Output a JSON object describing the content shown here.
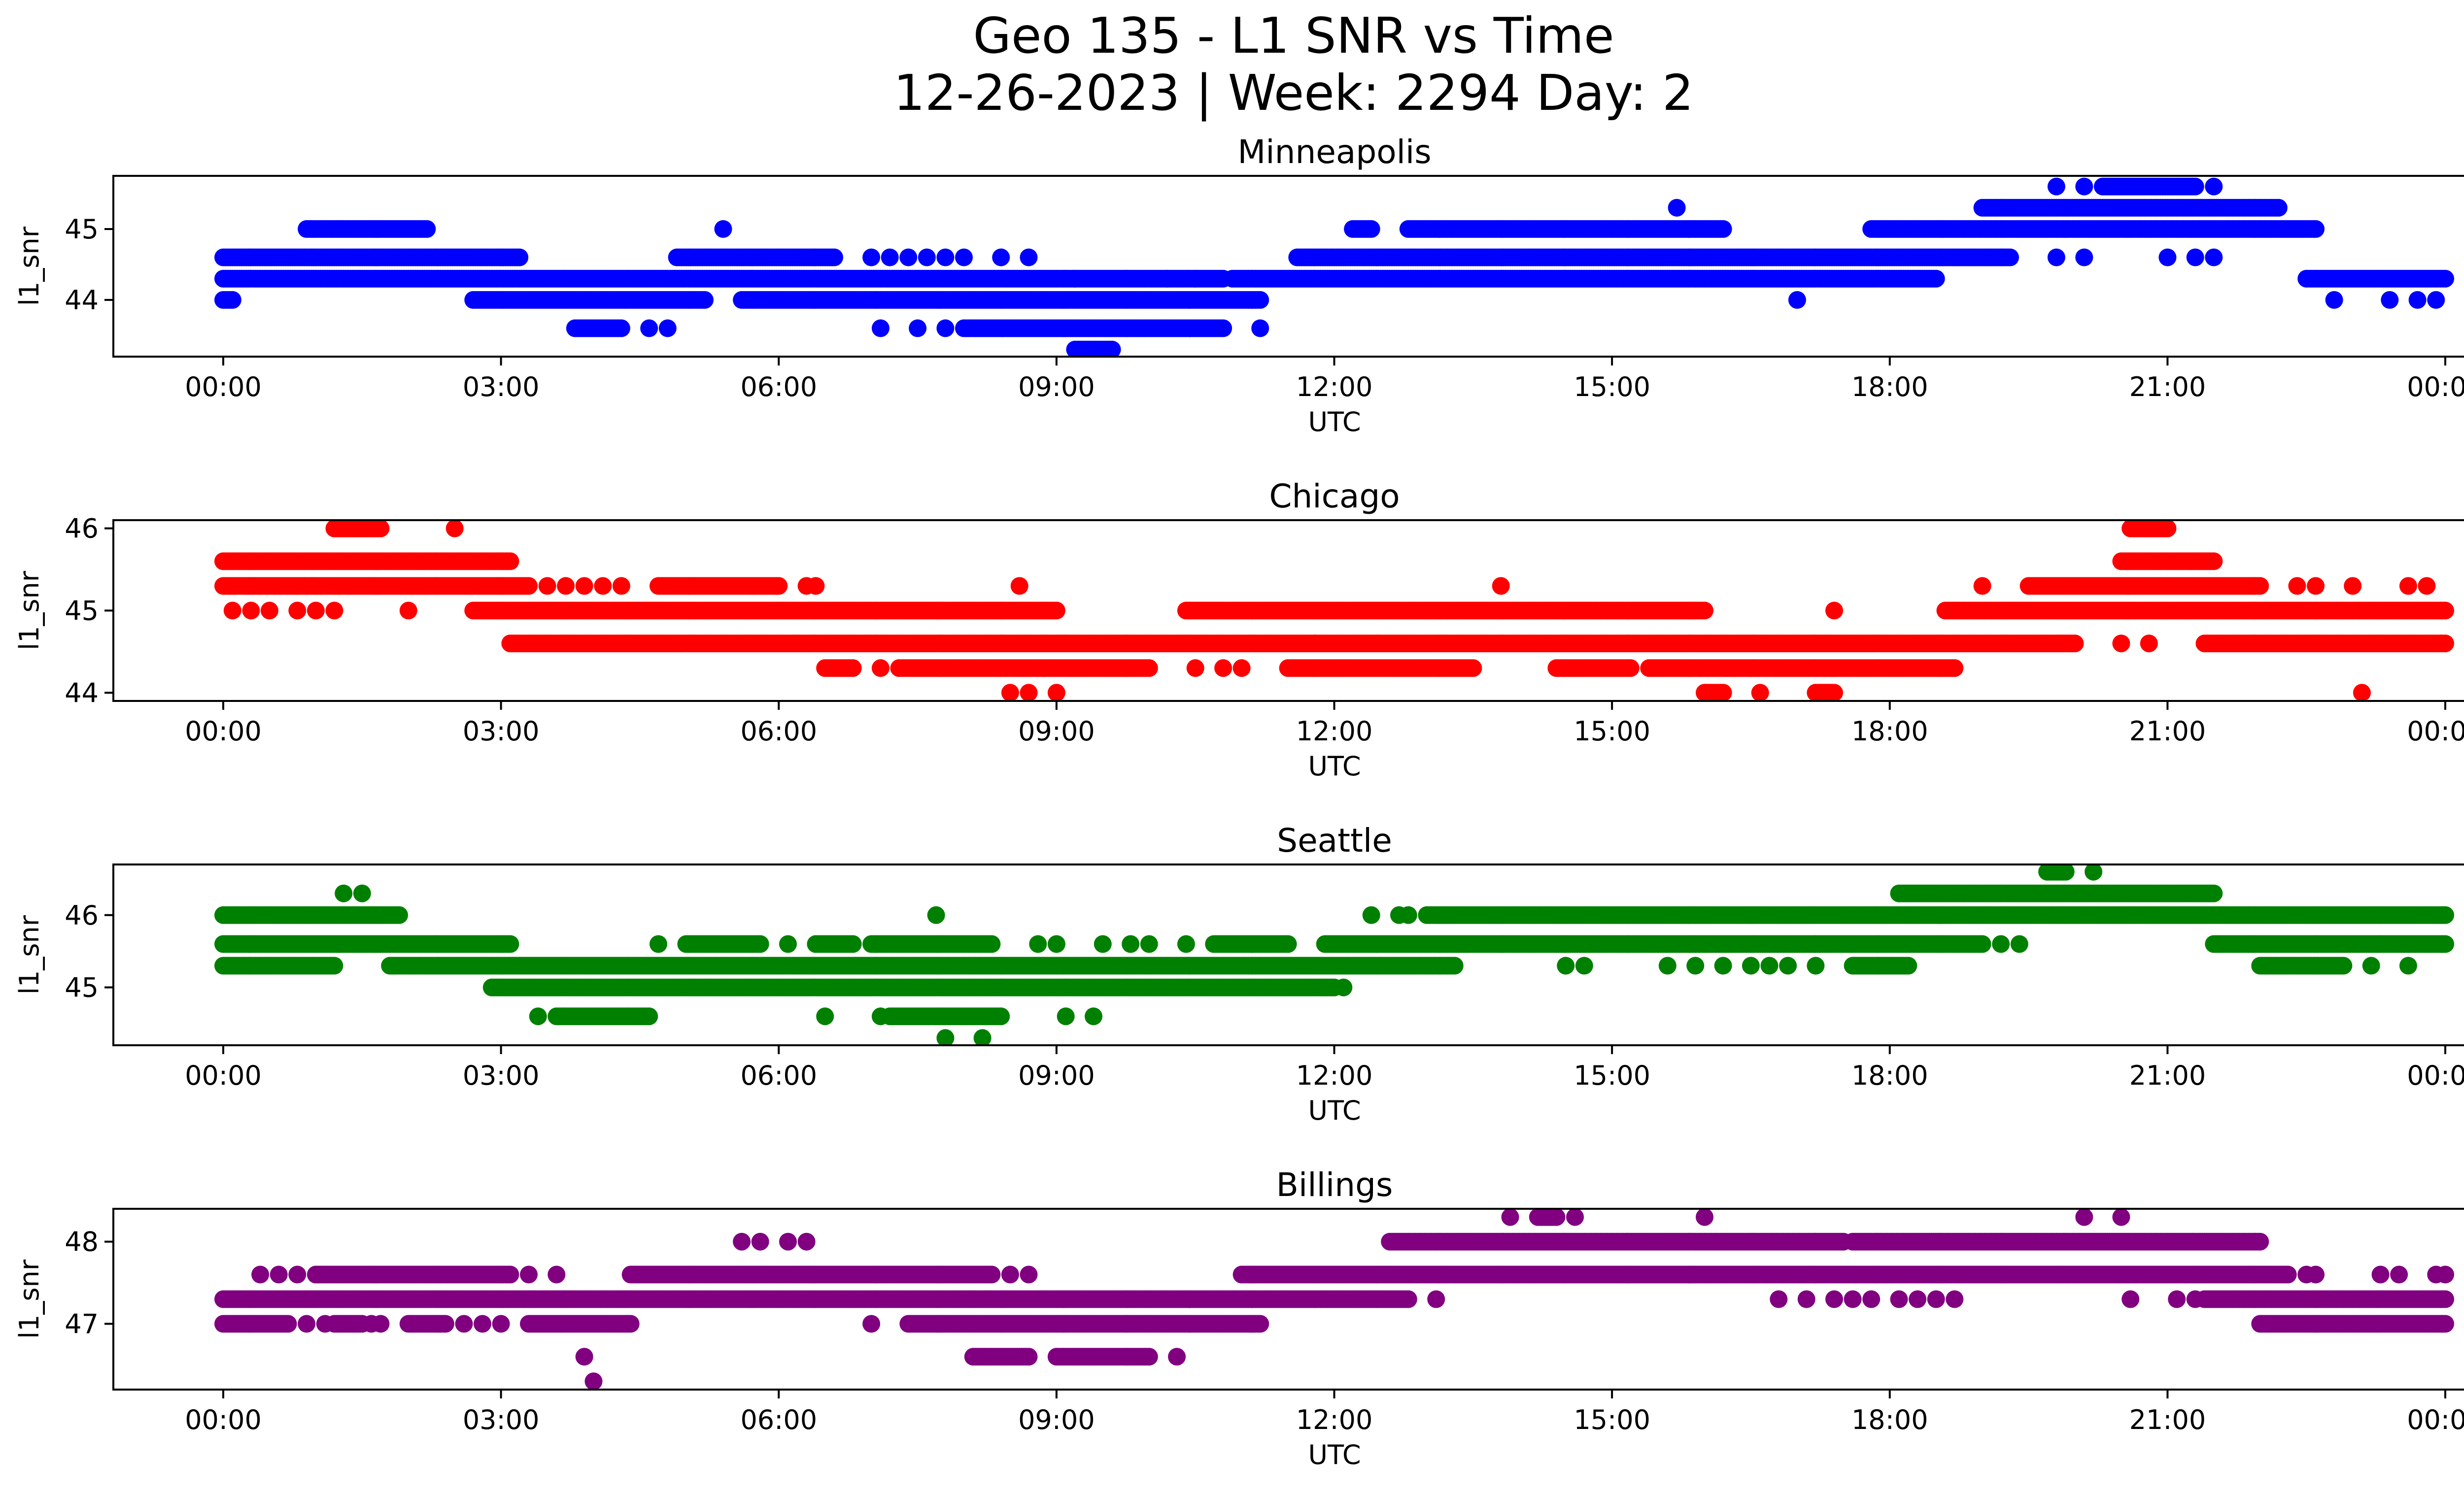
{
  "figure": {
    "title_line1": "Geo 135 - L1 SNR vs Time",
    "title_line2": "12-26-2023 | Week: 2294 Day: 2"
  },
  "chart_data": [
    {
      "type": "scatter",
      "title": "Minneapolis",
      "xlabel": "UTC",
      "ylabel": "l1_snr",
      "color": "#0000ff",
      "xlim": [
        "00:00",
        "24:00"
      ],
      "ylim": [
        43.2,
        45.75
      ],
      "x_ticks": [
        "00:00",
        "03:00",
        "06:00",
        "09:00",
        "12:00",
        "15:00",
        "18:00",
        "21:00",
        "00:00"
      ],
      "y_ticks": [
        44,
        45
      ],
      "bands": [
        {
          "y": 45.6,
          "ranges": [
            [
              20.3,
              21.3
            ]
          ],
          "sparse": [
            19.8,
            20.1,
            21.5
          ]
        },
        {
          "y": 45.3,
          "ranges": [
            [
              19.0,
              22.2
            ]
          ],
          "sparse": [
            15.7
          ]
        },
        {
          "y": 45.0,
          "ranges": [
            [
              0.9,
              2.2
            ],
            [
              12.2,
              12.4
            ],
            [
              12.8,
              16.2
            ],
            [
              17.8,
              22.6
            ]
          ],
          "sparse": [
            5.4
          ]
        },
        {
          "y": 44.6,
          "ranges": [
            [
              0.0,
              3.2
            ],
            [
              4.9,
              6.6
            ],
            [
              11.6,
              19.3
            ]
          ],
          "sparse": [
            7.0,
            7.2,
            7.4,
            7.6,
            7.8,
            8.0,
            8.4,
            8.7,
            19.8,
            20.1,
            21.0,
            21.3,
            21.5
          ]
        },
        {
          "y": 44.3,
          "ranges": [
            [
              0.0,
              10.8
            ],
            [
              10.9,
              18.5
            ],
            [
              22.5,
              24.0
            ]
          ],
          "sparse": [
            9.2,
            10.2,
            10.5
          ]
        },
        {
          "y": 44.0,
          "ranges": [
            [
              0.0,
              0.1
            ],
            [
              2.7,
              5.2
            ],
            [
              5.6,
              11.2
            ]
          ],
          "sparse": [
            17.0,
            22.8,
            23.4,
            23.7,
            23.9
          ]
        },
        {
          "y": 43.6,
          "ranges": [
            [
              3.8,
              4.3
            ],
            [
              8.0,
              10.8
            ]
          ],
          "sparse": [
            4.6,
            4.8,
            7.1,
            7.5,
            7.8,
            11.2
          ]
        },
        {
          "y": 43.3,
          "ranges": [
            [
              9.2,
              9.6
            ]
          ],
          "sparse": []
        }
      ]
    },
    {
      "type": "scatter",
      "title": "Chicago",
      "xlabel": "UTC",
      "ylabel": "l1_snr",
      "color": "#ff0000",
      "xlim": [
        "00:00",
        "24:00"
      ],
      "ylim": [
        43.9,
        46.1
      ],
      "x_ticks": [
        "00:00",
        "03:00",
        "06:00",
        "09:00",
        "12:00",
        "15:00",
        "18:00",
        "21:00",
        "00:00"
      ],
      "y_ticks": [
        44,
        45,
        46
      ],
      "bands": [
        {
          "y": 46.0,
          "ranges": [
            [
              1.2,
              1.7
            ],
            [
              20.6,
              21.0
            ]
          ],
          "sparse": [
            2.5
          ]
        },
        {
          "y": 45.6,
          "ranges": [
            [
              0.0,
              3.1
            ],
            [
              20.5,
              21.5
            ]
          ],
          "sparse": []
        },
        {
          "y": 45.3,
          "ranges": [
            [
              0.0,
              3.3
            ],
            [
              4.7,
              6.0
            ],
            [
              19.5,
              22.0
            ]
          ],
          "sparse": [
            3.5,
            3.7,
            3.9,
            4.1,
            4.3,
            6.3,
            6.4,
            8.6,
            13.8,
            19.0,
            22.4,
            22.6,
            23.0,
            23.6,
            23.8
          ]
        },
        {
          "y": 45.0,
          "ranges": [
            [
              2.7,
              9.0
            ],
            [
              10.4,
              16.0
            ],
            [
              18.6,
              24.0
            ]
          ],
          "sparse": [
            0.1,
            0.3,
            0.5,
            0.8,
            1.0,
            1.2,
            2.0,
            17.4
          ]
        },
        {
          "y": 44.6,
          "ranges": [
            [
              3.1,
              20.0
            ],
            [
              21.4,
              24.0
            ]
          ],
          "sparse": [
            20.5,
            20.8
          ]
        },
        {
          "y": 44.3,
          "ranges": [
            [
              6.5,
              6.8
            ],
            [
              7.3,
              10.0
            ],
            [
              11.5,
              13.5
            ],
            [
              14.4,
              15.2
            ],
            [
              15.4,
              18.7
            ]
          ],
          "sparse": [
            7.1,
            10.5,
            10.8,
            11.0
          ]
        },
        {
          "y": 44.0,
          "ranges": [
            [
              16.0,
              16.2
            ],
            [
              17.2,
              17.4
            ]
          ],
          "sparse": [
            8.5,
            8.7,
            9.0,
            16.6,
            23.1
          ]
        }
      ]
    },
    {
      "type": "scatter",
      "title": "Seattle",
      "xlabel": "UTC",
      "ylabel": "l1_snr",
      "color": "#008000",
      "xlim": [
        "00:00",
        "24:00"
      ],
      "ylim": [
        44.2,
        46.7
      ],
      "x_ticks": [
        "00:00",
        "03:00",
        "06:00",
        "09:00",
        "12:00",
        "15:00",
        "18:00",
        "21:00",
        "00:00"
      ],
      "y_ticks": [
        45,
        46
      ],
      "bands": [
        {
          "y": 46.6,
          "ranges": [
            [
              19.7,
              19.9
            ]
          ],
          "sparse": [
            20.2
          ]
        },
        {
          "y": 46.3,
          "ranges": [
            [
              18.1,
              21.5
            ]
          ],
          "sparse": [
            1.3,
            1.5
          ]
        },
        {
          "y": 46.0,
          "ranges": [
            [
              0.0,
              1.9
            ],
            [
              13.0,
              24.0
            ]
          ],
          "sparse": [
            7.7,
            12.4,
            12.7,
            12.8
          ]
        },
        {
          "y": 45.6,
          "ranges": [
            [
              0.0,
              3.1
            ],
            [
              5.0,
              5.8
            ],
            [
              6.4,
              6.8
            ],
            [
              7.0,
              8.3
            ],
            [
              10.7,
              11.5
            ],
            [
              11.9,
              19.0
            ],
            [
              21.5,
              24.0
            ]
          ],
          "sparse": [
            4.7,
            6.1,
            8.8,
            9.0,
            9.5,
            9.8,
            10.0,
            10.4,
            19.2,
            19.4
          ]
        },
        {
          "y": 45.3,
          "ranges": [
            [
              0.0,
              1.2
            ],
            [
              1.8,
              13.3
            ],
            [
              17.6,
              18.2
            ],
            [
              22.0,
              22.9
            ]
          ],
          "sparse": [
            14.5,
            14.7,
            15.6,
            15.9,
            16.2,
            16.5,
            16.7,
            16.9,
            17.2,
            23.2,
            23.6
          ]
        },
        {
          "y": 45.0,
          "ranges": [
            [
              2.9,
              12.0
            ]
          ],
          "sparse": [
            12.1
          ]
        },
        {
          "y": 44.6,
          "ranges": [
            [
              3.6,
              4.6
            ],
            [
              7.2,
              8.4
            ]
          ],
          "sparse": [
            3.4,
            6.5,
            7.1,
            9.1,
            9.4
          ]
        },
        {
          "y": 44.3,
          "ranges": [],
          "sparse": [
            7.8,
            8.2
          ]
        }
      ]
    },
    {
      "type": "scatter",
      "title": "Billings",
      "xlabel": "UTC",
      "ylabel": "l1_snr",
      "color": "#800080",
      "xlim": [
        "00:00",
        "24:00"
      ],
      "ylim": [
        46.2,
        48.4
      ],
      "x_ticks": [
        "00:00",
        "03:00",
        "06:00",
        "09:00",
        "12:00",
        "15:00",
        "18:00",
        "21:00",
        "00:00"
      ],
      "y_ticks": [
        47,
        48
      ],
      "bands": [
        {
          "y": 48.3,
          "ranges": [
            [
              14.2,
              14.4
            ]
          ],
          "sparse": [
            13.9,
            14.6,
            16.0,
            20.1,
            20.5
          ]
        },
        {
          "y": 48.0,
          "ranges": [
            [
              12.6,
              17.5
            ],
            [
              17.6,
              22.0
            ]
          ],
          "sparse": [
            5.6,
            5.8,
            6.1,
            6.3
          ]
        },
        {
          "y": 47.6,
          "ranges": [
            [
              1.0,
              3.1
            ],
            [
              4.4,
              8.3
            ],
            [
              11.0,
              22.3
            ]
          ],
          "sparse": [
            0.4,
            0.6,
            0.8,
            3.3,
            3.6,
            8.5,
            8.7,
            22.5,
            22.6,
            23.3,
            23.5,
            23.9,
            24.0
          ]
        },
        {
          "y": 47.3,
          "ranges": [
            [
              0.0,
              12.8
            ],
            [
              21.4,
              24.0
            ]
          ],
          "sparse": [
            13.1,
            16.8,
            17.1,
            17.4,
            17.6,
            17.8,
            18.1,
            18.3,
            18.5,
            18.7,
            20.6,
            21.1,
            21.3
          ]
        },
        {
          "y": 47.0,
          "ranges": [
            [
              0.0,
              0.7
            ],
            [
              1.2,
              1.5
            ],
            [
              2.0,
              2.4
            ],
            [
              3.3,
              4.4
            ],
            [
              7.4,
              11.2
            ],
            [
              22.0,
              24.0
            ]
          ],
          "sparse": [
            0.9,
            1.1,
            1.6,
            1.7,
            2.6,
            2.8,
            3.0,
            7.0
          ]
        },
        {
          "y": 46.6,
          "ranges": [
            [
              8.1,
              8.7
            ],
            [
              9.0,
              10.0
            ]
          ],
          "sparse": [
            3.9,
            10.3
          ]
        },
        {
          "y": 46.3,
          "ranges": [],
          "sparse": [
            4.0
          ]
        }
      ]
    }
  ]
}
